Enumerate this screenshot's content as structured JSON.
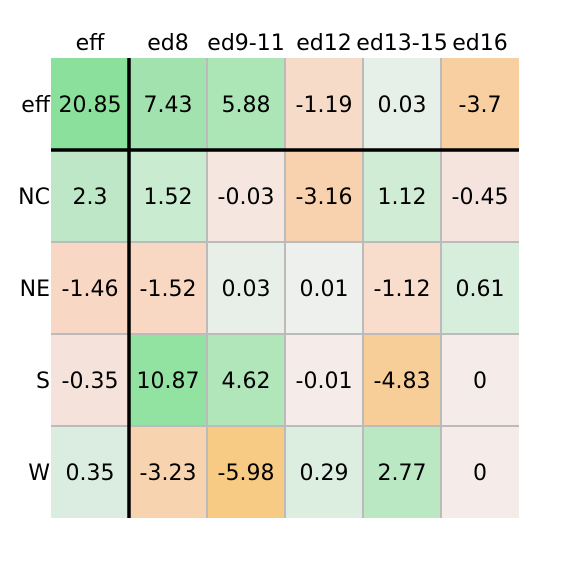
{
  "chart_data": {
    "type": "heatmap",
    "title": "",
    "xlabel": "",
    "ylabel": "",
    "columns": [
      "eff",
      "ed8",
      "ed9-11",
      "ed12",
      "ed13-15",
      "ed16"
    ],
    "rows": [
      "eff",
      "NC",
      "NE",
      "S",
      "W"
    ],
    "cells": [
      [
        "20.85",
        "7.43",
        "5.88",
        "-1.19",
        "0.03",
        "-3.7"
      ],
      [
        "2.3",
        "1.52",
        "-0.03",
        "-3.16",
        "1.12",
        "-0.45"
      ],
      [
        "-1.46",
        "-1.52",
        "0.03",
        "0.01",
        "-1.12",
        "0.61"
      ],
      [
        "-0.35",
        "10.87",
        "4.62",
        "-0.01",
        "-4.83",
        "0"
      ],
      [
        "0.35",
        "-3.23",
        "-5.98",
        "0.29",
        "2.77",
        "0"
      ]
    ],
    "cell_colors": [
      [
        "#8be09c",
        "#a2e2ae",
        "#ade6b6",
        "#f7dbc9",
        "#e6efe8",
        "#f8cfa1"
      ],
      [
        "#bde7c6",
        "#c9ebd0",
        "#f5e6df",
        "#f8d2ae",
        "#d0ecd5",
        "#f5e4de"
      ],
      [
        "#f8d8c4",
        "#f8d7c3",
        "#e8efe9",
        "#edf0ed",
        "#f8dccc",
        "#d8eedc"
      ],
      [
        "#f5e3db",
        "#92e3a2",
        "#b1e5ba",
        "#f5ebe8",
        "#f8ce98",
        "#f5ebe8"
      ],
      [
        "#daede0",
        "#f8d3af",
        "#f8cb84",
        "#dceee0",
        "#bae8c3",
        "#f5ebe8"
      ]
    ],
    "grid_color": "#bbbbbb",
    "separator_color": "#000000"
  }
}
